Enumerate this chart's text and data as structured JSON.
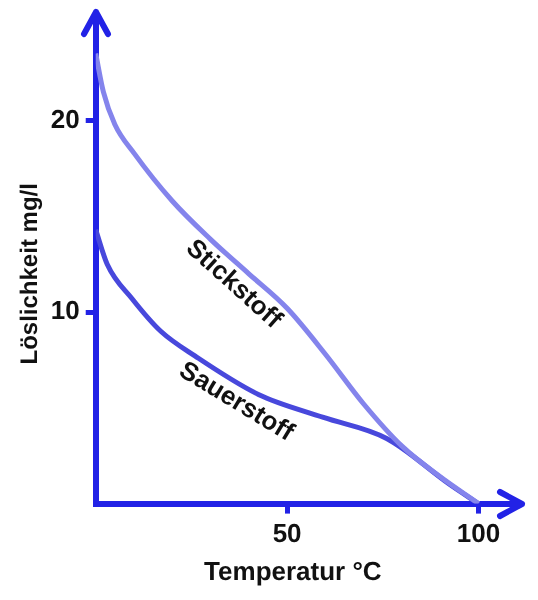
{
  "chart_data": {
    "type": "line",
    "xlabel": "Temperatur °C",
    "ylabel": "Löslichkeit mg/l",
    "xlim": [
      0,
      103
    ],
    "ylim": [
      0,
      24
    ],
    "xticks": [
      50,
      100
    ],
    "yticks": [
      10,
      20
    ],
    "grid": false,
    "legend": false,
    "marker": "none",
    "line_style": "solid",
    "series": [
      {
        "name": "Stickstoff",
        "color": "#8484ec",
        "x": [
          0,
          2,
          5,
          10,
          20,
          30,
          40,
          50,
          60,
          70,
          80,
          90,
          100
        ],
        "values": [
          23.5,
          21.5,
          19.8,
          18.3,
          15.8,
          13.8,
          12,
          10.2,
          7.8,
          5.2,
          3,
          1.4,
          0
        ]
      },
      {
        "name": "Sauerstoff",
        "color": "#4848dc",
        "x": [
          0,
          3,
          9.5,
          17,
          26,
          42.5,
          59.5,
          76,
          92.5,
          100
        ],
        "values": [
          14.3,
          12.5,
          10.7,
          9,
          7.7,
          5.7,
          4.5,
          3.4,
          1,
          0
        ]
      }
    ]
  }
}
